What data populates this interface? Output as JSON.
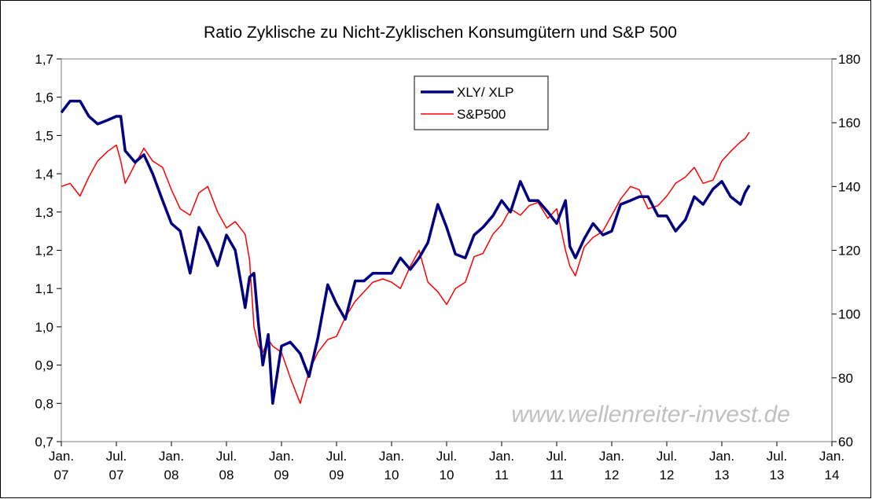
{
  "chart_data": {
    "type": "line",
    "title": "Ratio Zyklische zu Nicht-Zyklischen Konsumgütern und S&P 500",
    "annotation": "www.wellenreiter-invest.de",
    "x": [
      2007,
      2007.08,
      2007.17,
      2007.25,
      2007.33,
      2007.42,
      2007.5,
      2007.54,
      2007.58,
      2007.67,
      2007.75,
      2007.83,
      2007.92,
      2008,
      2008.08,
      2008.17,
      2008.25,
      2008.33,
      2008.42,
      2008.5,
      2008.58,
      2008.67,
      2008.71,
      2008.75,
      2008.79,
      2008.83,
      2008.88,
      2008.92,
      2009,
      2009.08,
      2009.17,
      2009.25,
      2009.33,
      2009.42,
      2009.5,
      2009.58,
      2009.67,
      2009.75,
      2009.83,
      2009.92,
      2010,
      2010.08,
      2010.17,
      2010.25,
      2010.33,
      2010.42,
      2010.5,
      2010.58,
      2010.67,
      2010.75,
      2010.83,
      2010.92,
      2011,
      2011.08,
      2011.17,
      2011.25,
      2011.33,
      2011.42,
      2011.5,
      2011.58,
      2011.62,
      2011.67,
      2011.75,
      2011.83,
      2011.92,
      2012,
      2012.08,
      2012.17,
      2012.25,
      2012.33,
      2012.42,
      2012.5,
      2012.58,
      2012.67,
      2012.75,
      2012.83,
      2012.92,
      2013,
      2013.08,
      2013.17,
      2013.21,
      2013.25
    ],
    "series": [
      {
        "name": "XLY/ XLP",
        "color": "#000080",
        "axis": "y",
        "values": [
          1.56,
          1.59,
          1.59,
          1.55,
          1.53,
          1.54,
          1.55,
          1.55,
          1.46,
          1.43,
          1.45,
          1.4,
          1.33,
          1.27,
          1.25,
          1.14,
          1.26,
          1.22,
          1.16,
          1.24,
          1.2,
          1.05,
          1.13,
          1.14,
          1.01,
          0.9,
          0.98,
          0.8,
          0.95,
          0.96,
          0.93,
          0.87,
          0.97,
          1.11,
          1.06,
          1.02,
          1.12,
          1.12,
          1.14,
          1.14,
          1.14,
          1.18,
          1.15,
          1.18,
          1.22,
          1.32,
          1.26,
          1.19,
          1.18,
          1.24,
          1.26,
          1.29,
          1.33,
          1.3,
          1.38,
          1.33,
          1.33,
          1.3,
          1.27,
          1.33,
          1.21,
          1.18,
          1.23,
          1.27,
          1.24,
          1.25,
          1.32,
          1.33,
          1.34,
          1.34,
          1.29,
          1.29,
          1.25,
          1.28,
          1.34,
          1.32,
          1.36,
          1.38,
          1.34,
          1.32,
          1.35,
          1.37
        ]
      },
      {
        "name": "S&P500",
        "color": "#ff0000",
        "axis": "y2",
        "values": [
          140,
          141,
          137,
          143,
          148,
          151,
          153,
          148,
          141,
          147,
          152,
          148,
          146,
          139,
          133,
          131,
          138,
          140,
          132,
          127,
          129,
          125,
          117,
          96,
          90,
          88,
          92,
          90,
          88,
          80,
          72,
          82,
          88,
          92,
          93,
          99,
          104,
          107,
          110,
          111,
          110,
          108,
          115,
          120,
          110,
          107,
          103,
          108,
          110,
          118,
          119,
          125,
          128,
          133,
          131,
          134,
          135,
          130,
          133,
          120,
          115,
          112,
          121,
          124,
          126,
          131,
          136,
          140,
          139,
          133,
          134,
          137,
          141,
          143,
          146,
          141,
          142,
          148,
          151,
          154,
          155,
          157
        ]
      }
    ],
    "xlim": [
      2007,
      2014
    ],
    "xticks": [
      {
        "value": 2007,
        "label": "Jan. 07"
      },
      {
        "value": 2007.5,
        "label": "Jul. 07"
      },
      {
        "value": 2008,
        "label": "Jan. 08"
      },
      {
        "value": 2008.5,
        "label": "Jul. 08"
      },
      {
        "value": 2009,
        "label": "Jan. 09"
      },
      {
        "value": 2009.5,
        "label": "Jul. 09"
      },
      {
        "value": 2010,
        "label": "Jan. 10"
      },
      {
        "value": 2010.5,
        "label": "Jul. 10"
      },
      {
        "value": 2011,
        "label": "Jan. 11"
      },
      {
        "value": 2011.5,
        "label": "Jul. 11"
      },
      {
        "value": 2012,
        "label": "Jan. 12"
      },
      {
        "value": 2012.5,
        "label": "Jul. 12"
      },
      {
        "value": 2013,
        "label": "Jan. 13"
      },
      {
        "value": 2013.5,
        "label": "Jul. 13"
      },
      {
        "value": 2014,
        "label": "Jan. 14"
      }
    ],
    "ylim": [
      0.7,
      1.7
    ],
    "yticks": [
      {
        "value": 0.7,
        "label": "0,7"
      },
      {
        "value": 0.8,
        "label": "0,8"
      },
      {
        "value": 0.9,
        "label": "0,9"
      },
      {
        "value": 1.0,
        "label": "1,0"
      },
      {
        "value": 1.1,
        "label": "1,1"
      },
      {
        "value": 1.2,
        "label": "1,2"
      },
      {
        "value": 1.3,
        "label": "1,3"
      },
      {
        "value": 1.4,
        "label": "1,4"
      },
      {
        "value": 1.5,
        "label": "1,5"
      },
      {
        "value": 1.6,
        "label": "1,6"
      },
      {
        "value": 1.7,
        "label": "1,7"
      }
    ],
    "y2lim": [
      60,
      180
    ],
    "y2ticks": [
      60,
      80,
      100,
      120,
      140,
      160,
      180
    ],
    "grid": false
  }
}
